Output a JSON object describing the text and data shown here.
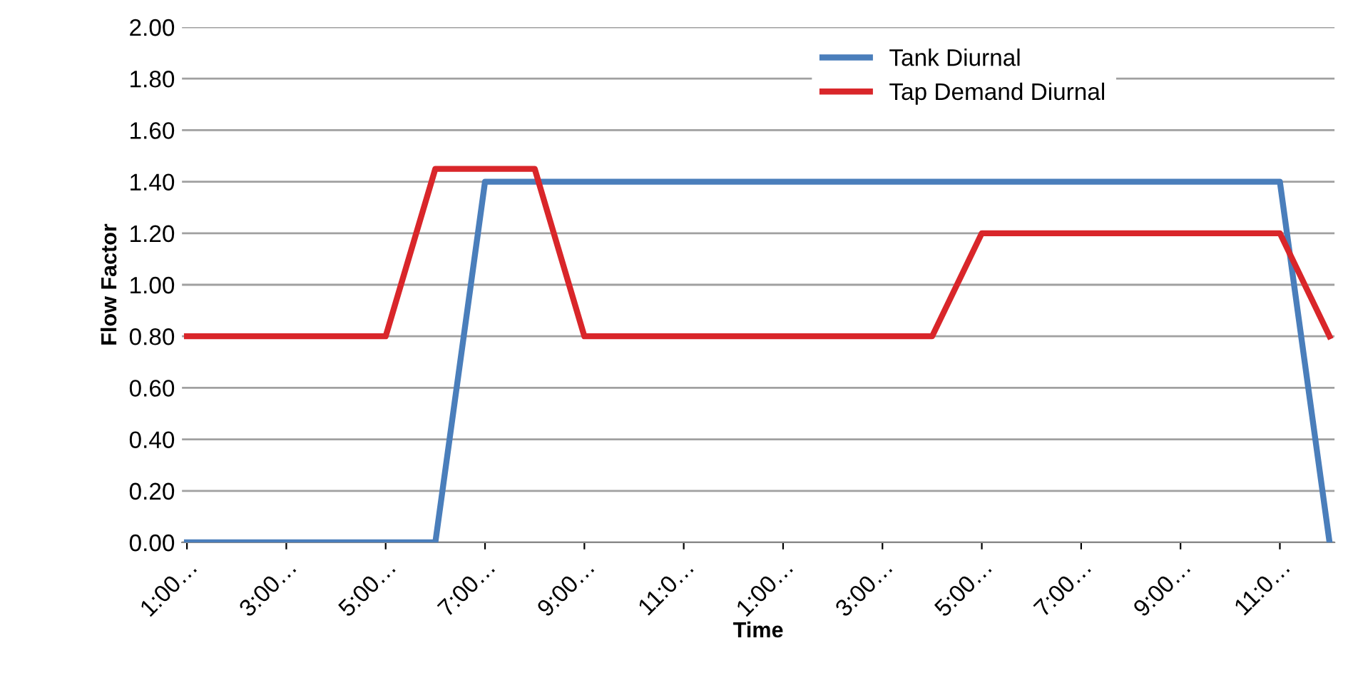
{
  "chart_data": {
    "type": "line",
    "xlabel": "Time",
    "ylabel": "Flow Factor",
    "categories": [
      "1:00…",
      null,
      "3:00…",
      null,
      "5:00…",
      null,
      "7:00…",
      null,
      "9:00…",
      null,
      "11:0…",
      null,
      "1:00…",
      null,
      "3:00…",
      null,
      "5:00…",
      null,
      "7:00…",
      null,
      "9:00…",
      null,
      "11:0…",
      null
    ],
    "series": [
      {
        "name": "Tank Diurnal",
        "color": "#4a7ebb",
        "values": [
          0,
          0,
          0,
          0,
          0,
          0,
          1.4,
          1.4,
          1.4,
          1.4,
          1.4,
          1.4,
          1.4,
          1.4,
          1.4,
          1.4,
          1.4,
          1.4,
          1.4,
          1.4,
          1.4,
          1.4,
          1.4,
          0
        ]
      },
      {
        "name": "Tap Demand Diurnal",
        "color": "#d9262a",
        "values": [
          0.8,
          0.8,
          0.8,
          0.8,
          0.8,
          1.45,
          1.45,
          1.45,
          0.8,
          0.8,
          0.8,
          0.8,
          0.8,
          0.8,
          0.8,
          0.8,
          1.2,
          1.2,
          1.2,
          1.2,
          1.2,
          1.2,
          1.2,
          0.8
        ]
      }
    ],
    "ylim": [
      0,
      2
    ],
    "yticks": [
      {
        "value": 0,
        "label": "0.00"
      },
      {
        "value": 0.2,
        "label": "0.20"
      },
      {
        "value": 0.4,
        "label": "0.40"
      },
      {
        "value": 0.6,
        "label": "0.60"
      },
      {
        "value": 0.8,
        "label": "0.80"
      },
      {
        "value": 1.0,
        "label": "1.00"
      },
      {
        "value": 1.2,
        "label": "1.20"
      },
      {
        "value": 1.4,
        "label": "1.40"
      },
      {
        "value": 1.6,
        "label": "1.60"
      },
      {
        "value": 1.8,
        "label": "1.80"
      },
      {
        "value": 2.0,
        "label": "2.00"
      }
    ],
    "grid": "y",
    "legend": "top right",
    "marker": "none",
    "line_style": "solid"
  }
}
